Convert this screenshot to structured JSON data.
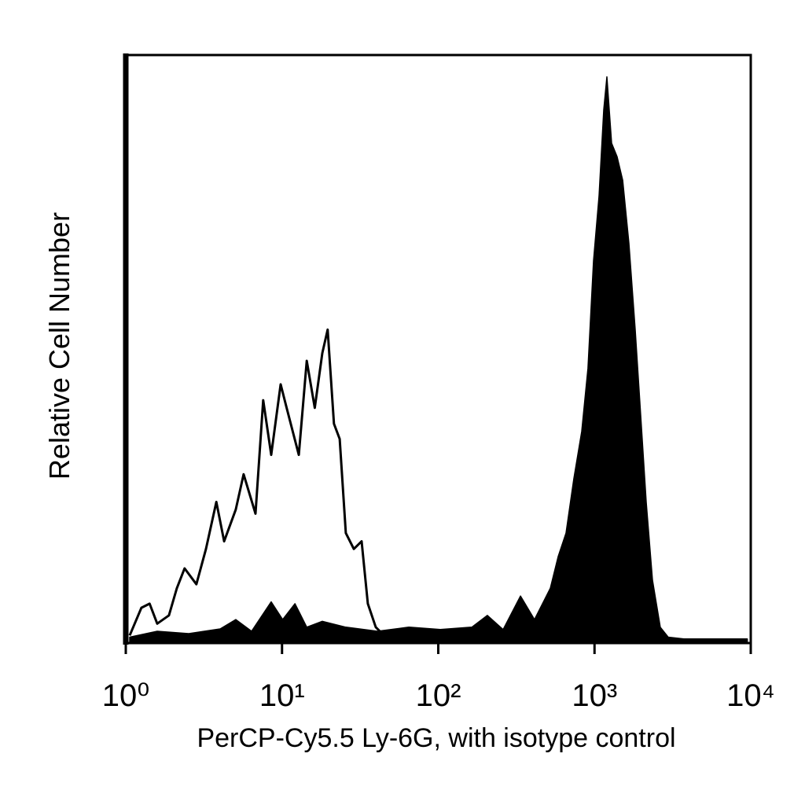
{
  "chart_data": {
    "type": "histogram-overlay",
    "xlabel": "PerCP-Cy5.5 Ly-6G, with isotype control",
    "ylabel": "Relative Cell Number",
    "log_x": true,
    "xlim": [
      1,
      10000
    ],
    "xticks": [
      {
        "value": 1,
        "label": "10⁰"
      },
      {
        "value": 10,
        "label": "10¹"
      },
      {
        "value": 100,
        "label": "10²"
      },
      {
        "value": 1000,
        "label": "10³"
      },
      {
        "value": 10000,
        "label": "10⁴"
      }
    ],
    "ylim": [
      0,
      100
    ],
    "series": [
      {
        "color": "#000000",
        "filled": true,
        "x": [
          1.06,
          1.59,
          2.53,
          4.02,
          5.06,
          6.38,
          8.53,
          10.1,
          12.1,
          14.4,
          18.1,
          25.6,
          40.8,
          64.8,
          103,
          164,
          206,
          260,
          336,
          413,
          521,
          585,
          657,
          738,
          828,
          908,
          986,
          1069,
          1146,
          1200,
          1286,
          1396,
          1514,
          1660,
          1821,
          1976,
          2143,
          2350,
          2637,
          2963,
          3733,
          9500
        ],
        "values": [
          1,
          2,
          1.6,
          2.4,
          4,
          2,
          7,
          4,
          6.7,
          2.7,
          3.7,
          2.7,
          2,
          2.7,
          2.3,
          2.7,
          4.7,
          2.3,
          8,
          4,
          9.3,
          14.7,
          18.7,
          28,
          36,
          46.7,
          65,
          76,
          90.7,
          96.3,
          85,
          82.7,
          78.7,
          68,
          53.3,
          38.7,
          24,
          10.7,
          2.7,
          1,
          0.7,
          0.7
        ]
      },
      {
        "color": "#000000",
        "filled": false,
        "x": [
          1.06,
          1.26,
          1.42,
          1.59,
          1.89,
          2.12,
          2.38,
          2.83,
          3.26,
          3.8,
          4.26,
          5.06,
          5.68,
          6.76,
          7.58,
          8.53,
          9.8,
          10.7,
          12.8,
          14.4,
          16.2,
          18.1,
          19.6,
          21.5,
          23.4,
          25.6,
          28.8,
          32.3,
          35.4,
          39.8,
          45.7,
          57.6
        ],
        "values": [
          1.3,
          6,
          6.7,
          3.3,
          4.7,
          9.3,
          12.7,
          10,
          16,
          24,
          17.3,
          22.7,
          28.7,
          22,
          41.3,
          32,
          44,
          40,
          32,
          48,
          40,
          49.3,
          53.3,
          37.3,
          34.7,
          18.7,
          16,
          17.3,
          6.7,
          2.7,
          1.1,
          0.7
        ]
      }
    ]
  }
}
